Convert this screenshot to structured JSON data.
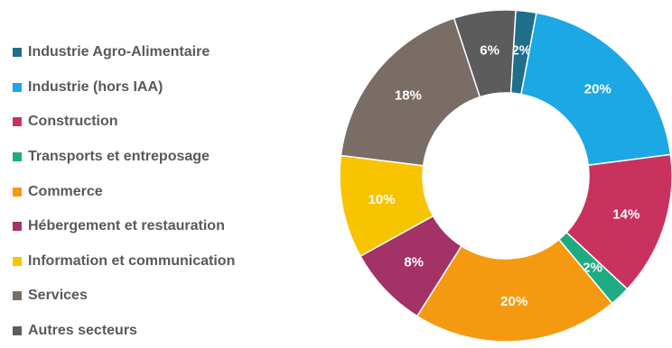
{
  "chart_data": {
    "type": "pie",
    "variant": "donut",
    "legend_position": "left",
    "categories": [
      "Industrie Agro-Alimentaire",
      "Industrie (hors IAA)",
      "Construction",
      "Transports et entreposage",
      "Commerce",
      "Hébergement et restauration",
      "Information et communication",
      "Services",
      "Autres secteurs"
    ],
    "values": [
      2,
      20,
      14,
      2,
      20,
      8,
      10,
      18,
      6
    ],
    "data_labels": [
      "2%",
      "20%",
      "14%",
      "2%",
      "20%",
      "8%",
      "10%",
      "18%",
      "6%"
    ],
    "colors": [
      "#1f6f8b",
      "#1ca7e5",
      "#c9325f",
      "#1eab84",
      "#f59a10",
      "#a33266",
      "#f8c300",
      "#7a6d66",
      "#5c5c5c"
    ]
  }
}
